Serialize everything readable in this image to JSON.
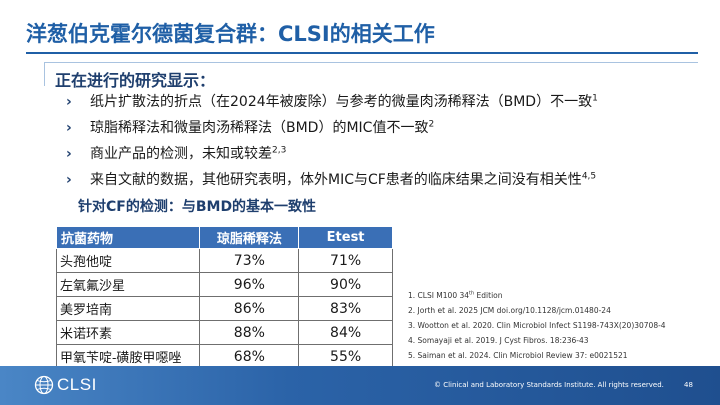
{
  "slide": {
    "title": "洋葱伯克霍尔德菌复合群：CLSI的相关工作",
    "subtitle": "正在进行的研究显示：",
    "bullets": [
      {
        "text": "纸片扩散法的折点（在2024年被废除）与参考的微量肉汤稀释法（BMD）不一致",
        "sup": "1"
      },
      {
        "text": "琼脂稀释法和微量肉汤稀释法（BMD）的MIC值不一致",
        "sup": "2"
      },
      {
        "text": "商业产品的检测，未知或较差",
        "sup": "2,3"
      },
      {
        "text": "来自文献的数据，其他研究表明，体外MIC与CF患者的临床结果之间没有相关性",
        "sup": "4,5"
      }
    ],
    "bullet_marker": "›",
    "table_caption": "针对CF的检测：与BMD的基本一致性",
    "table": {
      "headers": [
        "抗菌药物",
        "琼脂稀释法",
        "Etest"
      ],
      "rows": [
        [
          "头孢他啶",
          "73%",
          "71%"
        ],
        [
          "左氧氟沙星",
          "96%",
          "90%"
        ],
        [
          "美罗培南",
          "86%",
          "83%"
        ],
        [
          "米诺环素",
          "88%",
          "84%"
        ],
        [
          "甲氧苄啶-磺胺甲噁唑",
          "68%",
          "55%"
        ]
      ]
    },
    "references": [
      {
        "text": "1. CLSI M100 34",
        "sup": "th",
        "after": " Edition"
      },
      {
        "text": "2. Jorth et al. 2025 JCM doi.org/10.1128/jcm.01480-24",
        "sup": "",
        "after": ""
      },
      {
        "text": "3. Wootton et al. 2020. Clin Microbiol Infect S1198-743X(20)30708-4",
        "sup": "",
        "after": ""
      },
      {
        "text": "4. Somayaji et al. 2019. J Cyst Fibros. 18:236-43",
        "sup": "",
        "after": ""
      },
      {
        "text": "5. Saiman et al. 2024. Clin Microbiol Review 37: e0021521",
        "sup": "",
        "after": ""
      }
    ],
    "footer": {
      "logo_text": "CLSI",
      "copyright": "© Clinical and Laboratory Standards Institute. All rights reserved.",
      "page_number": "48"
    },
    "colors": {
      "title_blue": "#1f5fa6",
      "header_blue": "#3a6fb6",
      "footer_blue": "#2b63a8"
    },
    "icons": {
      "logo": "globe-icon",
      "bullet": "chevron-right-icon"
    }
  }
}
